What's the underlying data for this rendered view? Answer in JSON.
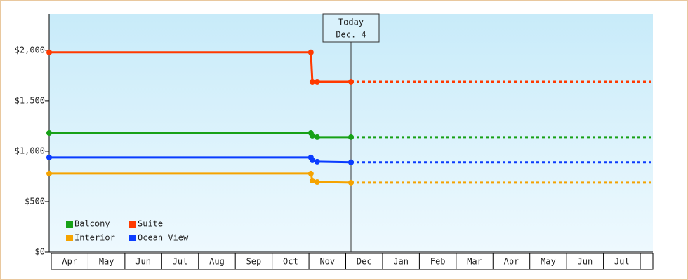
{
  "chart_data": {
    "type": "line",
    "categories": [
      "Apr",
      "May",
      "Jun",
      "Jul",
      "Aug",
      "Sep",
      "Oct",
      "Nov",
      "Dec",
      "Jan",
      "Feb",
      "Mar",
      "Apr",
      "May",
      "Jun",
      "Jul"
    ],
    "x": [
      0,
      7.11,
      7.15,
      7.28,
      8.2,
      16.4
    ],
    "xlim": [
      0,
      16.4
    ],
    "series": [
      {
        "name": "Balcony",
        "color": "#17a117",
        "values": [
          1180,
          1180,
          1153,
          1139,
          1139,
          1139
        ]
      },
      {
        "name": "Suite",
        "color": "#ff3a00",
        "values": [
          1980,
          1980,
          1687,
          1687,
          1687,
          1687
        ]
      },
      {
        "name": "Interior",
        "color": "#f5a300",
        "values": [
          778,
          778,
          708,
          694,
          688,
          688
        ]
      },
      {
        "name": "Ocean View",
        "color": "#0a3cff",
        "values": [
          938,
          938,
          910,
          896,
          890,
          890
        ]
      }
    ],
    "ylim": [
      0,
      2360
    ],
    "yticks": [
      {
        "value": 0,
        "label": "$0"
      },
      {
        "value": 500,
        "label": "$500"
      },
      {
        "value": 1000,
        "label": "$1,000"
      },
      {
        "value": 1500,
        "label": "$1,500"
      },
      {
        "value": 2000,
        "label": "$2,000"
      }
    ],
    "annotation": {
      "x": 8.2,
      "lines": [
        "Today",
        "Dec. 4"
      ]
    },
    "grid": false,
    "legend": "bottom-left"
  }
}
